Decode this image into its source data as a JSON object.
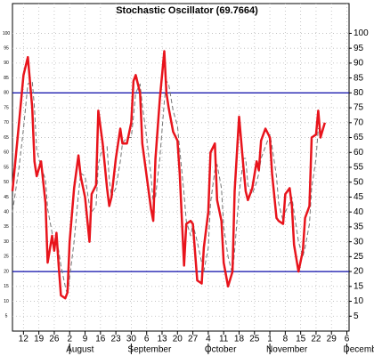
{
  "chart_data": {
    "type": "line",
    "title": "Stochastic Oscillator (69.7664)",
    "x": [
      -5,
      -2,
      0,
      2,
      4,
      5,
      6,
      8,
      10,
      11,
      13,
      14,
      15,
      16,
      17,
      19,
      20,
      21,
      23,
      25,
      26,
      28,
      30,
      31,
      33,
      34,
      36,
      38,
      39,
      40,
      42,
      44,
      45,
      47,
      49,
      50,
      51,
      53,
      54,
      56,
      58,
      59,
      60,
      62,
      64,
      65,
      66,
      68,
      70,
      71,
      73,
      74,
      76,
      77,
      79,
      81,
      82,
      84,
      85,
      87,
      88,
      90,
      91,
      93,
      95,
      96,
      98,
      100,
      101,
      102,
      104,
      106,
      107,
      108,
      110,
      112,
      113,
      115,
      116,
      118,
      119,
      121,
      122,
      123,
      125,
      127,
      128,
      130,
      131,
      133,
      134,
      135,
      137
    ],
    "series": [
      {
        "color": "#e8141c",
        "width": 2.5,
        "dash": false,
        "values": [
          47,
          70,
          86,
          92,
          75,
          57,
          52,
          57,
          43,
          23,
          32,
          27,
          33,
          22,
          12,
          11,
          13,
          30,
          48,
          59,
          52,
          45,
          30,
          46,
          49,
          74,
          63,
          48,
          42,
          45,
          58,
          68,
          63,
          63,
          70,
          84,
          86,
          80,
          63,
          52,
          41,
          37,
          58,
          78,
          94,
          80,
          75,
          67,
          64,
          53,
          22,
          36,
          37,
          36,
          17,
          16,
          28,
          40,
          60,
          63,
          44,
          37,
          23,
          15,
          20,
          47,
          72,
          55,
          47,
          44,
          48,
          57,
          54,
          64,
          68,
          65,
          53,
          38,
          37,
          36,
          46,
          48,
          42,
          29,
          20,
          27,
          38,
          42,
          65,
          66,
          74,
          65,
          70
        ]
      },
      {
        "color": "#777777",
        "width": 1,
        "dash": true,
        "values": [
          40,
          55,
          68,
          83,
          84,
          75,
          61,
          55,
          51,
          41,
          33,
          27,
          31,
          27,
          22,
          15,
          12,
          18,
          30,
          46,
          53,
          52,
          42,
          40,
          42,
          56,
          62,
          62,
          51,
          45,
          48,
          57,
          63,
          65,
          65,
          72,
          80,
          83,
          76,
          65,
          52,
          43,
          45,
          58,
          77,
          84,
          83,
          74,
          69,
          61,
          46,
          37,
          32,
          36,
          30,
          23,
          20,
          28,
          43,
          54,
          56,
          48,
          35,
          25,
          19,
          27,
          46,
          58,
          58,
          49,
          46,
          50,
          53,
          58,
          62,
          66,
          62,
          52,
          43,
          37,
          40,
          43,
          45,
          40,
          30,
          25,
          28,
          36,
          48,
          58,
          68,
          68,
          null
        ]
      }
    ],
    "hlines": [
      80,
      20
    ],
    "hline_color": "#0a0aa8",
    "xlim": [
      -5,
      148
    ],
    "xticks": [
      {
        "value": 0,
        "label": "12"
      },
      {
        "value": 7,
        "label": "19"
      },
      {
        "value": 14,
        "label": "26"
      },
      {
        "value": 21,
        "label": "2"
      },
      {
        "value": 28,
        "label": "9"
      },
      {
        "value": 35,
        "label": "16"
      },
      {
        "value": 42,
        "label": "23"
      },
      {
        "value": 49,
        "label": "30"
      },
      {
        "value": 56,
        "label": "6"
      },
      {
        "value": 63,
        "label": "13"
      },
      {
        "value": 70,
        "label": "20"
      },
      {
        "value": 77,
        "label": "27"
      },
      {
        "value": 84,
        "label": "4"
      },
      {
        "value": 91,
        "label": "11"
      },
      {
        "value": 98,
        "label": "18"
      },
      {
        "value": 105,
        "label": "25"
      },
      {
        "value": 112,
        "label": "1"
      },
      {
        "value": 119,
        "label": "8"
      },
      {
        "value": 126,
        "label": "15"
      },
      {
        "value": 133,
        "label": "22"
      },
      {
        "value": 140,
        "label": "29"
      },
      {
        "value": 147,
        "label": "6"
      }
    ],
    "months": [
      {
        "value": 21,
        "label": "August"
      },
      {
        "value": 49,
        "label": "September"
      },
      {
        "value": 84,
        "label": "October"
      },
      {
        "value": 112,
        "label": "November"
      },
      {
        "value": 147,
        "label": "December"
      }
    ],
    "ylim": [
      0,
      110
    ],
    "yticks": [
      5,
      10,
      15,
      20,
      25,
      30,
      35,
      40,
      45,
      50,
      55,
      60,
      65,
      70,
      75,
      80,
      85,
      90,
      95,
      100
    ],
    "grid": true
  }
}
